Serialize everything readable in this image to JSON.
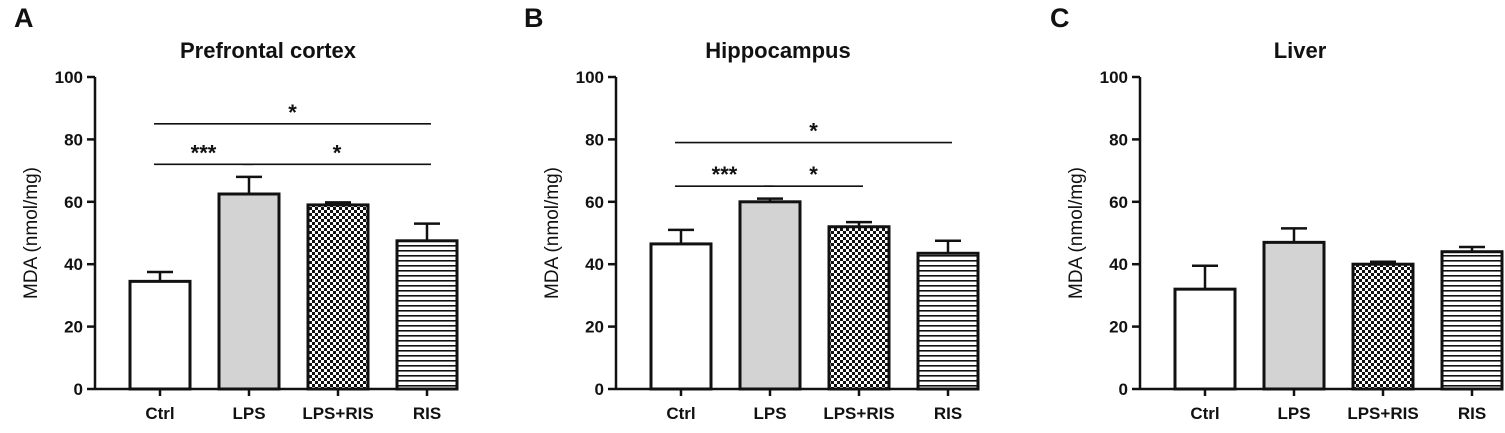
{
  "chart_data": [
    {
      "type": "bar",
      "panel": "A",
      "title": "Prefrontal cortex",
      "ylabel": "MDA (nmol/mg)",
      "xlabel": "",
      "ylim": [
        0,
        100
      ],
      "yticks": [
        "0",
        "20",
        "40",
        "60",
        "80",
        "100"
      ],
      "categories": [
        "Ctrl",
        "LPS",
        "LPS+RIS",
        "RIS"
      ],
      "values": [
        34.5,
        62.5,
        59,
        47.5
      ],
      "errors": [
        3,
        5.5,
        0.8,
        5.5
      ],
      "significance": [
        {
          "from": 0,
          "to": 1,
          "y": 72,
          "label": "***"
        },
        {
          "from": 1,
          "to": 3,
          "y": 72,
          "label": "*"
        },
        {
          "from": 0,
          "to": 3,
          "y": 85,
          "label": "*"
        }
      ]
    },
    {
      "type": "bar",
      "panel": "B",
      "title": "Hippocampus",
      "ylabel": "MDA (nmol/mg)",
      "xlabel": "",
      "ylim": [
        0,
        100
      ],
      "yticks": [
        "0",
        "20",
        "40",
        "60",
        "80",
        "100"
      ],
      "categories": [
        "Ctrl",
        "LPS",
        "LPS+RIS",
        "RIS"
      ],
      "values": [
        46.5,
        60,
        52,
        43.5
      ],
      "errors": [
        4.5,
        1,
        1.5,
        4
      ],
      "significance": [
        {
          "from": 0,
          "to": 1,
          "y": 65,
          "label": "***"
        },
        {
          "from": 1,
          "to": 2,
          "y": 65,
          "label": "*"
        },
        {
          "from": 0,
          "to": 3,
          "y": 79,
          "label": "*"
        }
      ]
    },
    {
      "type": "bar",
      "panel": "C",
      "title": "Liver",
      "ylabel": "MDA (nmol/mg)",
      "xlabel": "",
      "ylim": [
        0,
        100
      ],
      "yticks": [
        "0",
        "20",
        "40",
        "60",
        "80",
        "100"
      ],
      "categories": [
        "Ctrl",
        "LPS",
        "LPS+RIS",
        "RIS"
      ],
      "values": [
        32,
        47,
        40,
        44
      ],
      "errors": [
        7.5,
        4.5,
        0.8,
        1.5
      ],
      "significance": []
    }
  ],
  "bar_styles": [
    {
      "category": "Ctrl",
      "fill": "#ffffff",
      "pattern": "none"
    },
    {
      "category": "LPS",
      "fill": "#d3d3d3",
      "pattern": "none"
    },
    {
      "category": "LPS+RIS",
      "fill": "#ffffff",
      "pattern": "checker"
    },
    {
      "category": "RIS",
      "fill": "#ffffff",
      "pattern": "horizontal-lines"
    }
  ],
  "colors": {
    "stroke": "#111111",
    "gray_fill": "#d3d3d3",
    "pattern_ink": "#111111"
  }
}
